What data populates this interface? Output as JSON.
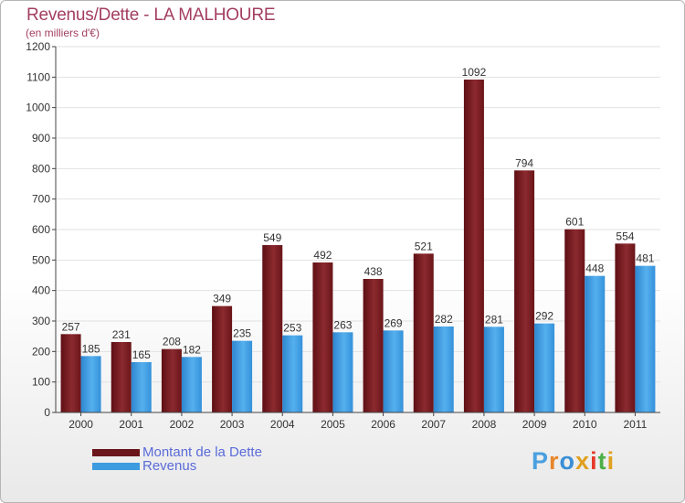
{
  "title": "Revenus/Dette - LA MALHOURE",
  "subtitle": "(en milliers d'€)",
  "brand": "Proxiti",
  "colors": {
    "dette": "#7a1a1f",
    "revenus": "#3d9be0",
    "title": "#a33e61",
    "legend_text": "#5a6bd9"
  },
  "chart_data": {
    "type": "bar",
    "title": "Revenus/Dette - LA MALHOURE",
    "ylabel": "(en milliers d'€)",
    "ylim": [
      0,
      1200
    ],
    "yticks": [
      0,
      100,
      200,
      300,
      400,
      500,
      600,
      700,
      800,
      900,
      1000,
      1100,
      1200
    ],
    "categories": [
      "2000",
      "2001",
      "2002",
      "2003",
      "2004",
      "2005",
      "2006",
      "2007",
      "2008",
      "2009",
      "2010",
      "2011"
    ],
    "series": [
      {
        "name": "Montant de la Dette",
        "values": [
          257,
          231,
          208,
          349,
          549,
          492,
          438,
          521,
          1092,
          794,
          601,
          554
        ]
      },
      {
        "name": "Revenus",
        "values": [
          185,
          165,
          182,
          235,
          253,
          263,
          269,
          282,
          281,
          292,
          448,
          481
        ]
      }
    ],
    "legend": [
      "Montant de la Dette",
      "Revenus"
    ]
  }
}
